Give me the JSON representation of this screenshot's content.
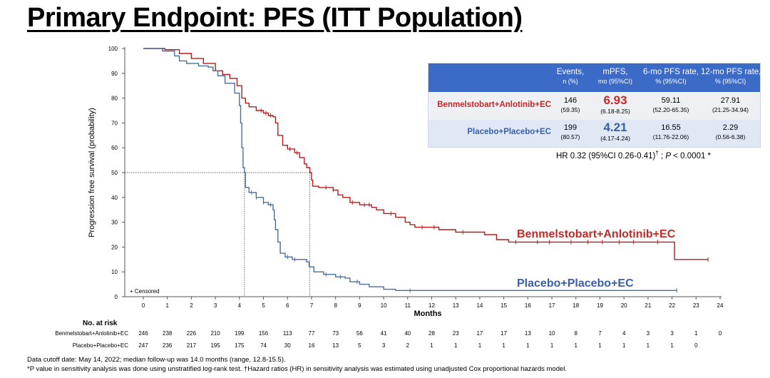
{
  "slide_title": "Primary Endpoint: PFS (ITT Population)",
  "chart_data": {
    "type": "line",
    "title": "",
    "xlabel": "Months",
    "ylabel": "Progression free survival (probability)",
    "xlim": [
      0,
      24
    ],
    "ylim": [
      0,
      100
    ],
    "x_ticks": [
      "0",
      "1",
      "2",
      "3",
      "4",
      "5",
      "6",
      "7",
      "8",
      "9",
      "10",
      "11",
      "12",
      "13",
      "14",
      "15",
      "16",
      "17",
      "18",
      "19",
      "20",
      "21",
      "22",
      "23",
      "24"
    ],
    "y_ticks": [
      "0",
      "10",
      "20",
      "30",
      "40",
      "50",
      "60",
      "70",
      "80",
      "90",
      "100"
    ],
    "censored_label": "+ Censored",
    "median_reference": {
      "y": 50,
      "x_values": [
        4.21,
        6.93
      ]
    },
    "series": [
      {
        "name": "Benmelstobart+Anlotinib+EC",
        "color": "#b71c1c",
        "points": [
          [
            0,
            100
          ],
          [
            0.9,
            99.5
          ],
          [
            1.5,
            98
          ],
          [
            2,
            96
          ],
          [
            2.5,
            94
          ],
          [
            3,
            91
          ],
          [
            3.3,
            89.5
          ],
          [
            3.6,
            88
          ],
          [
            3.9,
            85
          ],
          [
            4.1,
            80
          ],
          [
            4.25,
            78
          ],
          [
            4.4,
            76.5
          ],
          [
            4.7,
            75
          ],
          [
            5,
            74
          ],
          [
            5.2,
            73
          ],
          [
            5.4,
            72.5
          ],
          [
            5.5,
            70
          ],
          [
            5.6,
            65
          ],
          [
            5.8,
            61
          ],
          [
            6,
            59.5
          ],
          [
            6.3,
            58
          ],
          [
            6.5,
            56
          ],
          [
            6.7,
            53.5
          ],
          [
            6.8,
            52
          ],
          [
            6.93,
            50
          ],
          [
            7.0,
            47
          ],
          [
            7.05,
            44.5
          ],
          [
            7.3,
            44
          ],
          [
            7.9,
            43
          ],
          [
            8.1,
            41
          ],
          [
            8.3,
            40
          ],
          [
            8.6,
            38
          ],
          [
            9.0,
            37
          ],
          [
            9.5,
            36
          ],
          [
            9.7,
            35
          ],
          [
            10,
            33.5
          ],
          [
            10.5,
            32
          ],
          [
            10.9,
            30
          ],
          [
            11.1,
            29
          ],
          [
            11.3,
            28
          ],
          [
            12.3,
            27
          ],
          [
            13,
            26
          ],
          [
            14.2,
            25
          ],
          [
            14.7,
            23
          ],
          [
            15.2,
            22
          ],
          [
            16,
            22
          ],
          [
            18,
            22
          ],
          [
            20,
            22
          ],
          [
            22,
            22
          ],
          [
            22.1,
            15
          ],
          [
            23.5,
            15
          ]
        ],
        "censored": [
          4.9,
          5.1,
          5.3,
          6.1,
          6.4,
          7.6,
          7.9,
          8.7,
          9.2,
          9.4,
          10.3,
          11.6,
          12.1,
          13.3,
          15.5,
          16.4,
          16.9,
          17.8,
          18.5,
          19.1,
          19.8,
          20.4,
          21.4,
          23.5
        ]
      },
      {
        "name": "Placebo+Placebo+EC",
        "color": "#4a6f9c",
        "points": [
          [
            0,
            100
          ],
          [
            0.8,
            99
          ],
          [
            1.3,
            97
          ],
          [
            1.5,
            95
          ],
          [
            1.8,
            94
          ],
          [
            2.3,
            93
          ],
          [
            2.7,
            92.5
          ],
          [
            2.9,
            91
          ],
          [
            3.1,
            89
          ],
          [
            3.4,
            86
          ],
          [
            3.8,
            82
          ],
          [
            4.0,
            77
          ],
          [
            4.05,
            70
          ],
          [
            4.1,
            60
          ],
          [
            4.15,
            52
          ],
          [
            4.21,
            50
          ],
          [
            4.25,
            44
          ],
          [
            4.4,
            42
          ],
          [
            4.7,
            40
          ],
          [
            5.0,
            38
          ],
          [
            5.2,
            37
          ],
          [
            5.4,
            35
          ],
          [
            5.45,
            31
          ],
          [
            5.5,
            27
          ],
          [
            5.6,
            22
          ],
          [
            5.7,
            17.5
          ],
          [
            5.9,
            16
          ],
          [
            6.2,
            15
          ],
          [
            6.8,
            14
          ],
          [
            6.9,
            12
          ],
          [
            7.1,
            10
          ],
          [
            7.5,
            9
          ],
          [
            8.0,
            8
          ],
          [
            8.4,
            7.5
          ],
          [
            8.6,
            6
          ],
          [
            9.0,
            5
          ],
          [
            9.4,
            4
          ],
          [
            10.0,
            3
          ],
          [
            10.5,
            2.5
          ],
          [
            22.2,
            2.5
          ]
        ],
        "censored": [
          4.5,
          4.7,
          5.0,
          5.3,
          6.0,
          6.3,
          7.6,
          8.2,
          8.9,
          11.1,
          22.2
        ]
      }
    ]
  },
  "series_labels": {
    "a": "Benmelstobart+Anlotinib+EC",
    "b": "Placebo+Placebo+EC"
  },
  "risk_table": {
    "title": "No. at risk",
    "rows": [
      {
        "label": "Benmelstobart+Anlotinib+EC",
        "values": [
          "246",
          "238",
          "226",
          "210",
          "199",
          "156",
          "113",
          "77",
          "73",
          "56",
          "41",
          "40",
          "28",
          "23",
          "17",
          "17",
          "13",
          "10",
          "8",
          "7",
          "4",
          "3",
          "3",
          "1",
          "0"
        ]
      },
      {
        "label": "Placebo+Placebo+EC",
        "values": [
          "247",
          "236",
          "217",
          "195",
          "175",
          "74",
          "30",
          "16",
          "13",
          "5",
          "3",
          "2",
          "1",
          "1",
          "1",
          "1",
          "1",
          "1",
          "1",
          "1",
          "1",
          "1",
          "1",
          "0"
        ]
      }
    ]
  },
  "stats_table": {
    "headers": [
      {
        "main": "Events,",
        "sub": "n (%)"
      },
      {
        "main": "mPFS,",
        "sub": "mo (95%CI)"
      },
      {
        "main": "6-mo PFS rate,",
        "sub": "% (95%CI)"
      },
      {
        "main": "12-mo PFS rate,",
        "sub": "% (95%CI)"
      }
    ],
    "rows": [
      {
        "label": "Benmelstobart+Anlotinib+EC",
        "events": "146",
        "events_pct": "(59.35)",
        "mpfs": "6.93",
        "mpfs_ci": "(6.18-8.25)",
        "rate6": "59.11",
        "rate6_ci": "(52.20-65.35)",
        "rate12": "27.91",
        "rate12_ci": "(21.25-34.94)"
      },
      {
        "label": "Placebo+Placebo+EC",
        "events": "199",
        "events_pct": "(80.57)",
        "mpfs": "4.21",
        "mpfs_ci": "(4.17-4.24)",
        "rate6": "16.55",
        "rate6_ci": "(11.76-22.06)",
        "rate12": "2.29",
        "rate12_ci": "(0.56-6.38)"
      }
    ],
    "hr_prefix": "HR 0.32 (95%CI 0.26-0.41)",
    "hr_mark": "†",
    "hr_sep": " ; ",
    "hr_p": "P",
    "hr_suffix": " < 0.0001 *"
  },
  "footnotes": {
    "line1": "Data cutoff date: May 14, 2022; median follow-up was 14.0 months (range, 12.8-15.5).",
    "line2": "*P value in sensitivity analysis was done using unstratified log-rank test.  †Hazard ratios (HR) in sensitivity analysis was estimated using unadjusted Cox proportional hazards model."
  },
  "colors": {
    "red": "#b71c1c",
    "blue": "#4a6f9c",
    "header": "#3b6ac7",
    "red_text": "#c62828",
    "blue_text": "#3a5fa8"
  }
}
